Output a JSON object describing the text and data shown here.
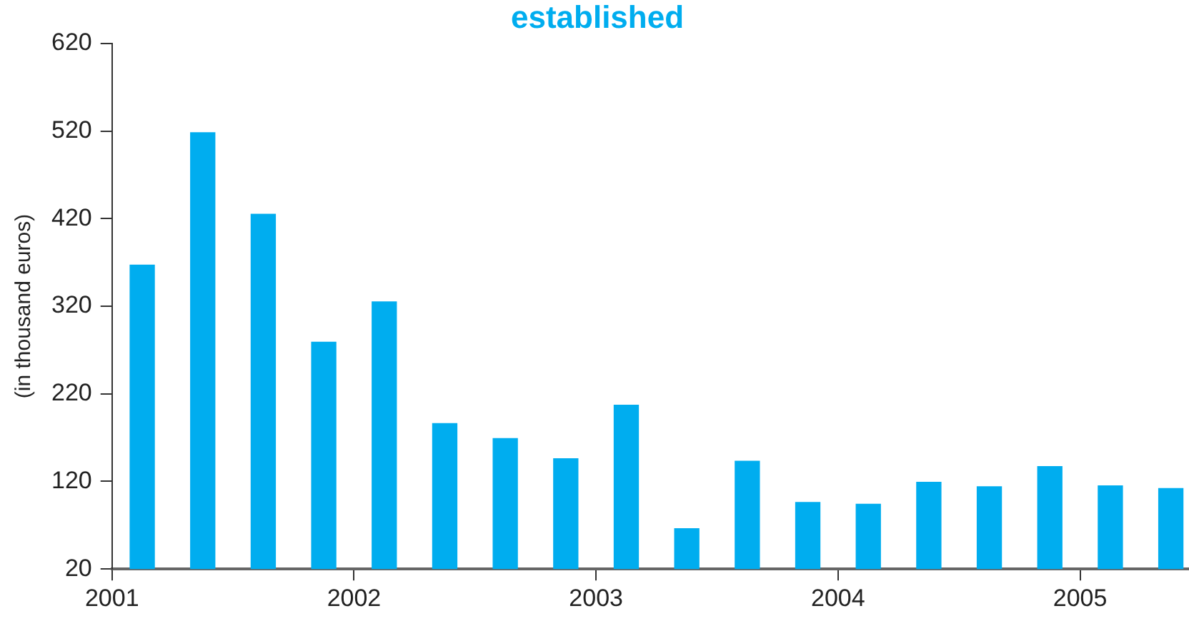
{
  "chart_data": {
    "type": "bar",
    "title": "established",
    "ylabel": "(in thousand euros)",
    "x": [
      2001.125,
      2001.375,
      2001.625,
      2001.875,
      2002.125,
      2002.375,
      2002.625,
      2002.875,
      2003.125,
      2003.375,
      2003.625,
      2003.875,
      2004.125,
      2004.375,
      2004.625,
      2004.875,
      2005.125,
      2005.375
    ],
    "values": [
      367,
      518,
      425,
      279,
      325,
      186,
      169,
      146,
      207,
      66,
      143,
      96,
      94,
      119,
      114,
      137,
      115,
      112
    ],
    "color": "#00adef",
    "xlim": [
      2001,
      2005.45
    ],
    "xticks": [
      2001,
      2002,
      2003,
      2004,
      2005
    ],
    "ylim": [
      20,
      620
    ],
    "yticks": [
      20,
      120,
      220,
      320,
      420,
      520,
      620
    ],
    "grid": false,
    "legend": false
  }
}
